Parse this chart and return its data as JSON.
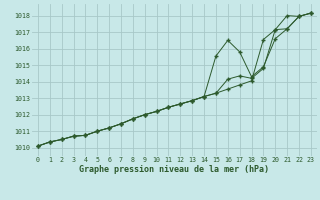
{
  "title": "Graphe pression niveau de la mer (hPa)",
  "bg_color": "#c8e8e8",
  "grid_color": "#a8c8c8",
  "line_color": "#2d5a2d",
  "x_values": [
    0,
    1,
    2,
    3,
    4,
    5,
    6,
    7,
    8,
    9,
    10,
    11,
    12,
    13,
    14,
    15,
    16,
    17,
    18,
    19,
    20,
    21,
    22,
    23
  ],
  "line_main": [
    1010.1,
    1010.35,
    1010.5,
    1010.7,
    1010.75,
    1011.0,
    1011.2,
    1011.45,
    1011.75,
    1012.0,
    1012.2,
    1012.45,
    1012.65,
    1012.85,
    1013.1,
    1013.3,
    1013.55,
    1013.8,
    1014.05,
    1016.55,
    1017.15,
    1017.2,
    1017.95,
    1018.15
  ],
  "line_high": [
    1010.1,
    1010.35,
    1010.5,
    1010.7,
    1010.75,
    1011.0,
    1011.2,
    1011.45,
    1011.75,
    1012.0,
    1012.2,
    1012.45,
    1012.65,
    1012.85,
    1013.1,
    1015.55,
    1016.5,
    1015.8,
    1014.3,
    1014.9,
    1016.6,
    1017.2,
    1017.95,
    1018.15
  ],
  "line_low": [
    1010.1,
    1010.35,
    1010.5,
    1010.7,
    1010.75,
    1011.0,
    1011.2,
    1011.45,
    1011.75,
    1012.0,
    1012.2,
    1012.45,
    1012.65,
    1012.85,
    1013.1,
    1013.3,
    1014.15,
    1014.35,
    1014.2,
    1014.8,
    1017.15,
    1018.0,
    1017.95,
    1018.15
  ],
  "ylim_min": 1009.5,
  "ylim_max": 1018.7,
  "yticks": [
    1010,
    1011,
    1012,
    1013,
    1014,
    1015,
    1016,
    1017,
    1018
  ],
  "xticks": [
    0,
    1,
    2,
    3,
    4,
    5,
    6,
    7,
    8,
    9,
    10,
    11,
    12,
    13,
    14,
    15,
    16,
    17,
    18,
    19,
    20,
    21,
    22,
    23
  ]
}
